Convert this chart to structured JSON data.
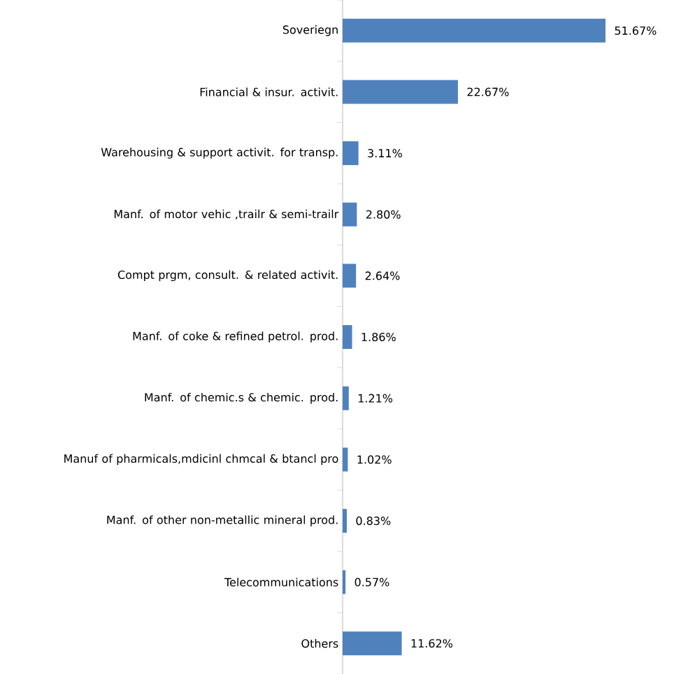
{
  "chart_data": {
    "type": "bar",
    "orientation": "horizontal",
    "color": "#4f81bd",
    "categories": [
      "Soveriegn",
      "Financial & insur. activit.",
      "Warehousing & support activit. for transp.",
      "Manf. of motor vehic ,trailr & semi-trailr",
      "Compt prgm, consult. & related activit.",
      "Manf. of coke & refined petrol. prod.",
      "Manf. of chemic.s & chemic. prod.",
      "Manuf of pharmicals,mdicinl chmcal & btancl pro",
      "Manf. of other non-metallic mineral prod.",
      "Telecommunications",
      "Others"
    ],
    "values": [
      51.67,
      22.67,
      3.11,
      2.8,
      2.64,
      1.86,
      1.21,
      1.02,
      0.83,
      0.57,
      11.62
    ],
    "value_labels": [
      "51.67%",
      "22.67%",
      "3.11%",
      "2.80%",
      "2.64%",
      "1.86%",
      "1.21%",
      "1.02%",
      "0.83%",
      "0.57%",
      "11.62%"
    ]
  }
}
